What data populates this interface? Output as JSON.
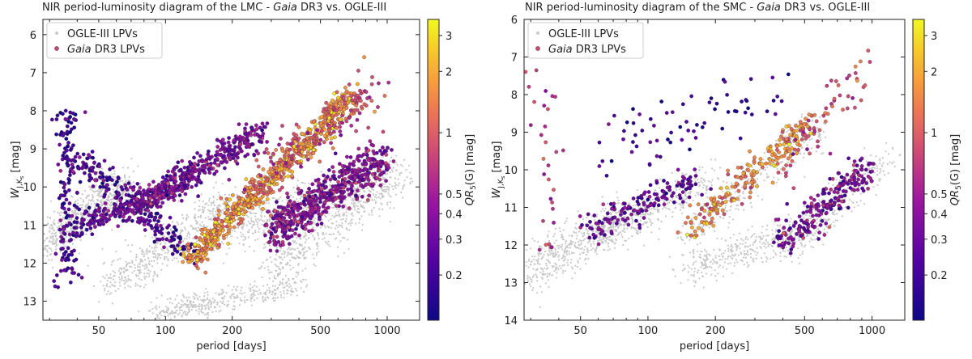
{
  "chart_data": [
    {
      "type": "scatter",
      "title": "NIR period-luminosity diagram of the LMC - Gaia DR3 vs. OGLE-III",
      "title_parts": [
        "NIR period-luminosity diagram of the LMC - ",
        "Gaia",
        " DR3 vs. OGLE-III"
      ],
      "xlabel": "period [days]",
      "ylabel": "W_JKs [mag]",
      "ylabel_parts": [
        "W",
        "J,K",
        "s",
        " [mag]"
      ],
      "colorbar_label": "QR5(G) [mag]",
      "colorbar_label_parts": [
        "QR",
        "5",
        "(G) [mag]"
      ],
      "x_scale": "log",
      "xlim": [
        28,
        1400
      ],
      "ylim": [
        13.5,
        5.6
      ],
      "y_inverted": true,
      "x_ticks": [
        "50",
        "100",
        "200",
        "500",
        "1000"
      ],
      "x_tick_values": [
        50,
        100,
        200,
        500,
        1000
      ],
      "y_ticks": [
        "6",
        "7",
        "8",
        "9",
        "10",
        "11",
        "12",
        "13"
      ],
      "y_tick_values": [
        6,
        7,
        8,
        9,
        10,
        11,
        12,
        13
      ],
      "colorbar_scale": "log",
      "colorbar_range": [
        0.12,
        3.6
      ],
      "colorbar_ticks": [
        "0.2",
        "0.3",
        "0.4",
        "0.5",
        "1",
        "2",
        "3"
      ],
      "colorbar_tick_values": [
        0.2,
        0.3,
        0.4,
        0.5,
        1,
        2,
        3
      ],
      "legend": {
        "placement": "top-left",
        "entries": [
          "OGLE-III LPVs",
          "Gaia DR3 LPVs"
        ]
      },
      "legend_parts": [
        [
          "OGLE-III LPVs"
        ],
        [
          "Gaia",
          " DR3 LPVs"
        ]
      ],
      "series": [
        {
          "name": "OGLE-III LPVs",
          "color": "#c8c8c8",
          "structures": [
            {
              "x0": 28,
              "y0": 11.6,
              "x1": 65,
              "y1": 9.9,
              "w": 0.5,
              "n": 600
            },
            {
              "x0": 55,
              "y0": 12.6,
              "x1": 190,
              "y1": 10.4,
              "w": 0.5,
              "n": 500
            },
            {
              "x0": 90,
              "y0": 13.3,
              "x1": 400,
              "y1": 12.6,
              "w": 0.3,
              "n": 400
            },
            {
              "x0": 180,
              "y0": 11.2,
              "x1": 900,
              "y1": 9.8,
              "w": 0.6,
              "n": 500
            },
            {
              "x0": 300,
              "y0": 12.2,
              "x1": 1200,
              "y1": 9.6,
              "w": 0.6,
              "n": 500
            }
          ]
        },
        {
          "name": "Gaia DR3 LPVs",
          "color_by": "QR5(G)",
          "structures": [
            {
              "x0": 36,
              "y0": 8.0,
              "x1": 36,
              "y1": 12.6,
              "w": 0.15,
              "n": 150,
              "q": 0.2
            },
            {
              "x0": 40,
              "y0": 9.2,
              "x1": 130,
              "y1": 11.8,
              "w": 0.35,
              "n": 200,
              "q": 0.22
            },
            {
              "x0": 40,
              "y0": 11.0,
              "x1": 130,
              "y1": 9.8,
              "w": 0.3,
              "n": 220,
              "q": 0.28
            },
            {
              "x0": 70,
              "y0": 10.6,
              "x1": 260,
              "y1": 8.6,
              "w": 0.35,
              "n": 400,
              "q": 0.35
            },
            {
              "x0": 130,
              "y0": 11.9,
              "x1": 700,
              "y1": 7.6,
              "w": 0.3,
              "n": 650,
              "q": 1.6
            },
            {
              "x0": 300,
              "y0": 11.2,
              "x1": 980,
              "y1": 9.2,
              "w": 0.55,
              "n": 550,
              "q": 0.4
            },
            {
              "x0": 250,
              "y0": 10.0,
              "x1": 950,
              "y1": 7.4,
              "w": 0.7,
              "n": 150,
              "q": 0.8
            }
          ]
        }
      ]
    },
    {
      "type": "scatter",
      "title": "NIR period-luminosity diagram of the SMC - Gaia DR3 vs. OGLE-III",
      "title_parts": [
        "NIR period-luminosity diagram of the SMC - ",
        "Gaia",
        " DR3 vs. OGLE-III"
      ],
      "xlabel": "period [days]",
      "ylabel": "W_JKs [mag]",
      "ylabel_parts": [
        "W",
        "J,K",
        "s",
        " [mag]"
      ],
      "colorbar_label": "QR5(G) [mag]",
      "colorbar_label_parts": [
        "QR",
        "5",
        "(G) [mag]"
      ],
      "x_scale": "log",
      "xlim": [
        28,
        1400
      ],
      "ylim": [
        14,
        6
      ],
      "y_inverted": true,
      "x_ticks": [
        "50",
        "100",
        "200",
        "500",
        "1000"
      ],
      "x_tick_values": [
        50,
        100,
        200,
        500,
        1000
      ],
      "y_ticks": [
        "6",
        "7",
        "8",
        "9",
        "10",
        "11",
        "12",
        "13",
        "14"
      ],
      "y_tick_values": [
        6,
        7,
        8,
        9,
        10,
        11,
        12,
        13,
        14
      ],
      "colorbar_scale": "log",
      "colorbar_range": [
        0.12,
        3.6
      ],
      "colorbar_ticks": [
        "0.2",
        "0.3",
        "0.4",
        "0.5",
        "1",
        "2",
        "3"
      ],
      "colorbar_tick_values": [
        0.2,
        0.3,
        0.4,
        0.5,
        1,
        2,
        3
      ],
      "legend": {
        "placement": "top-left",
        "entries": [
          "OGLE-III LPVs",
          "Gaia DR3 LPVs"
        ]
      },
      "legend_parts": [
        [
          "OGLE-III LPVs"
        ],
        [
          "Gaia",
          " DR3 LPVs"
        ]
      ],
      "series": [
        {
          "name": "OGLE-III LPVs",
          "color": "#c8c8c8",
          "structures": [
            {
              "x0": 28,
              "y0": 12.8,
              "x1": 80,
              "y1": 11.2,
              "w": 0.55,
              "n": 500
            },
            {
              "x0": 60,
              "y0": 11.8,
              "x1": 200,
              "y1": 10.2,
              "w": 0.5,
              "n": 350
            },
            {
              "x0": 150,
              "y0": 12.6,
              "x1": 500,
              "y1": 11.6,
              "w": 0.45,
              "n": 350
            },
            {
              "x0": 400,
              "y0": 12.2,
              "x1": 1200,
              "y1": 9.6,
              "w": 0.5,
              "n": 300
            },
            {
              "x0": 150,
              "y0": 11.8,
              "x1": 600,
              "y1": 8.8,
              "w": 0.5,
              "n": 250
            }
          ]
        },
        {
          "name": "Gaia DR3 LPVs",
          "color_by": "QR5(G)",
          "structures": [
            {
              "x0": 34,
              "y0": 7.2,
              "x1": 36,
              "y1": 12.2,
              "w": 0.2,
              "n": 30,
              "q": 0.6
            },
            {
              "x0": 55,
              "y0": 11.6,
              "x1": 170,
              "y1": 10.2,
              "w": 0.35,
              "n": 150,
              "q": 0.3
            },
            {
              "x0": 150,
              "y0": 11.6,
              "x1": 550,
              "y1": 8.7,
              "w": 0.35,
              "n": 220,
              "q": 1.5
            },
            {
              "x0": 380,
              "y0": 12.0,
              "x1": 960,
              "y1": 10.0,
              "w": 0.45,
              "n": 220,
              "q": 0.35
            },
            {
              "x0": 60,
              "y0": 9.5,
              "x1": 400,
              "y1": 8.0,
              "w": 0.9,
              "n": 70,
              "q": 0.2
            },
            {
              "x0": 400,
              "y0": 10.0,
              "x1": 960,
              "y1": 7.2,
              "w": 0.7,
              "n": 60,
              "q": 0.8
            }
          ]
        }
      ]
    }
  ]
}
